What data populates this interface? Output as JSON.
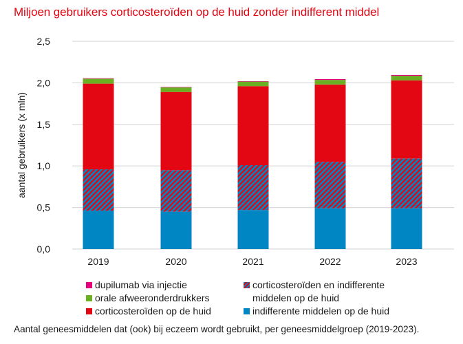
{
  "title": "Miljoen gebruikers corticosteroïden op de huid zonder indifferent middel",
  "caption": "Aantal geneesmiddelen dat (ook) bij eczeem wordt gebruikt, per geneesmiddelgroep (2019-2023).",
  "legend": [
    {
      "key": "dupilumab",
      "label": "dupilumab via injectie"
    },
    {
      "key": "orale",
      "label": "orale afweeronderdrukkers"
    },
    {
      "key": "cortico",
      "label": "corticosteroïden op de huid"
    },
    {
      "key": "combi",
      "label": "corticosteroïden en indifferente",
      "label2": "middelen op de huid"
    },
    {
      "key": "indiff",
      "label": "indifferente middelen op de huid"
    }
  ],
  "chart_data": {
    "type": "bar",
    "stacked": true,
    "title": "Miljoen gebruikers corticosteroïden op de huid zonder indifferent middel",
    "xlabel": "",
    "ylabel": "aantal gebruikers (x mln)",
    "ylim": [
      0,
      2.5
    ],
    "yticks": [
      "0,0",
      "0,5",
      "1,0",
      "1,5",
      "2,0",
      "2,5"
    ],
    "ytick_values": [
      0,
      0.5,
      1.0,
      1.5,
      2.0,
      2.5
    ],
    "grid": true,
    "legend_position": "bottom",
    "categories": [
      "2019",
      "2020",
      "2021",
      "2022",
      "2023"
    ],
    "series": [
      {
        "name": "indifferente middelen op de huid",
        "key": "indiff",
        "color": "#0086c3",
        "values": [
          0.46,
          0.45,
          0.47,
          0.49,
          0.49
        ]
      },
      {
        "name": "corticosteroïden en indifferente middelen op de huid",
        "key": "combi",
        "color": "#0086c3",
        "hatch": "#e30613",
        "values": [
          0.5,
          0.5,
          0.54,
          0.56,
          0.6
        ]
      },
      {
        "name": "corticosteroïden op de huid",
        "key": "cortico",
        "color": "#e30613",
        "values": [
          1.03,
          0.94,
          0.95,
          0.93,
          0.94
        ]
      },
      {
        "name": "orale afweeronderdrukkers",
        "key": "orale",
        "color": "#6ab023",
        "values": [
          0.06,
          0.055,
          0.055,
          0.055,
          0.055
        ]
      },
      {
        "name": "dupilumab via injectie",
        "key": "dupilumab",
        "color": "#e6007e",
        "values": [
          0.005,
          0.005,
          0.005,
          0.01,
          0.01
        ]
      }
    ]
  }
}
